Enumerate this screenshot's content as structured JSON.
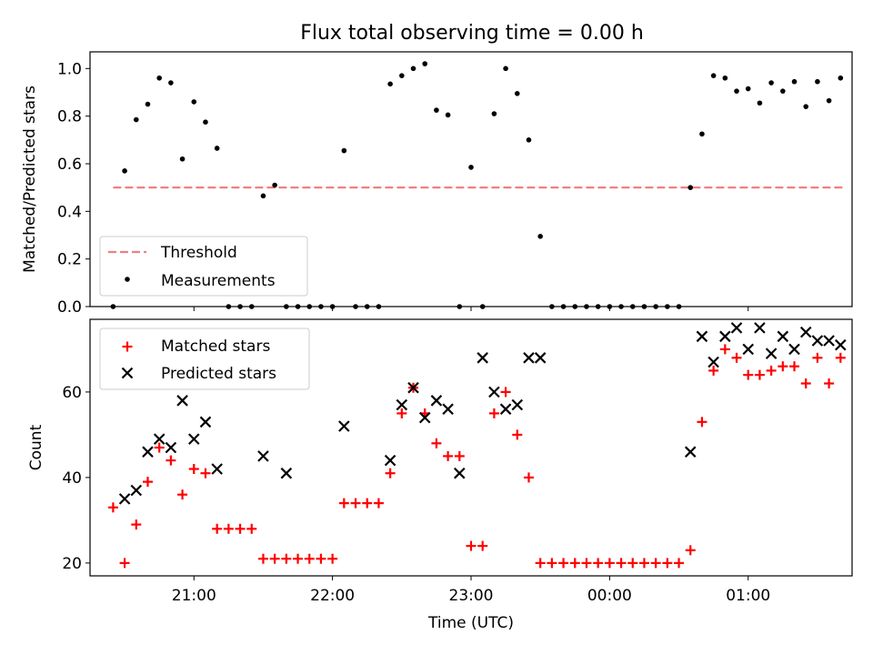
{
  "title": "Flux total observing time = 0.00 h",
  "colors": {
    "threshold": "#f08080",
    "measurements": "#000000",
    "matched": "#ff0000",
    "predicted": "#000000"
  },
  "chart_data": [
    {
      "type": "scatter",
      "ylabel": "Matched/Predicted stars",
      "xlim": [
        "20:15",
        "01:45"
      ],
      "ylim": [
        0,
        1.07
      ],
      "yticks": [
        0.0,
        0.2,
        0.4,
        0.6,
        0.8,
        1.0
      ],
      "ytick_labels": [
        "0.0",
        "0.2",
        "0.4",
        "0.6",
        "0.8",
        "1.0"
      ],
      "grid": false,
      "legend_position": "lower-left",
      "threshold": {
        "name": "Threshold",
        "y": 0.5,
        "x_range": [
          "20:25",
          "01:42"
        ]
      },
      "series": [
        {
          "name": "Measurements",
          "x": [
            "20:25",
            "20:30",
            "20:35",
            "20:40",
            "20:45",
            "20:50",
            "20:55",
            "21:00",
            "21:05",
            "21:10",
            "21:15",
            "21:20",
            "21:25",
            "21:30",
            "21:35",
            "21:40",
            "21:45",
            "21:50",
            "21:55",
            "22:00",
            "22:05",
            "22:10",
            "22:15",
            "22:20",
            "22:25",
            "22:30",
            "22:35",
            "22:40",
            "22:45",
            "22:50",
            "22:55",
            "23:00",
            "23:05",
            "23:10",
            "23:15",
            "23:20",
            "23:25",
            "23:30",
            "23:35",
            "23:40",
            "23:45",
            "23:50",
            "23:55",
            "00:00",
            "00:05",
            "00:10",
            "00:15",
            "00:20",
            "00:25",
            "00:30",
            "00:35",
            "00:40",
            "00:45",
            "00:50",
            "00:55",
            "01:00",
            "01:05",
            "01:10",
            "01:15",
            "01:20",
            "01:25",
            "01:30",
            "01:35",
            "01:40"
          ],
          "y": [
            0.0,
            0.57,
            0.785,
            0.85,
            0.96,
            0.94,
            0.62,
            0.86,
            0.775,
            0.665,
            0.0,
            0.0,
            0.0,
            0.465,
            0.51,
            0.0,
            0.0,
            0.0,
            0.0,
            0.0,
            0.655,
            0.0,
            0.0,
            0.0,
            0.935,
            0.97,
            1.0,
            1.02,
            0.825,
            0.805,
            0.0,
            0.585,
            0.0,
            0.81,
            1.0,
            0.895,
            0.7,
            0.295,
            0.0,
            0.0,
            0.0,
            0.0,
            0.0,
            0.0,
            0.0,
            0.0,
            0.0,
            0.0,
            0.0,
            0.0,
            0.5,
            0.725,
            0.97,
            0.96,
            0.905,
            0.915,
            0.855,
            0.94,
            0.905,
            0.945,
            0.84,
            0.945,
            0.865,
            0.96
          ]
        }
      ]
    },
    {
      "type": "scatter",
      "xlabel": "Time (UTC)",
      "ylabel": "Count",
      "xlim": [
        "20:15",
        "01:45"
      ],
      "ylim": [
        17,
        77
      ],
      "xticks": [
        "21:00",
        "22:00",
        "23:00",
        "00:00",
        "01:00"
      ],
      "yticks": [
        20,
        40,
        60
      ],
      "grid": false,
      "legend_position": "upper-left",
      "series": [
        {
          "name": "Matched stars",
          "marker": "+",
          "x": [
            "20:25",
            "20:30",
            "20:35",
            "20:40",
            "20:45",
            "20:50",
            "20:55",
            "21:00",
            "21:05",
            "21:10",
            "21:15",
            "21:20",
            "21:25",
            "21:30",
            "21:35",
            "21:40",
            "21:45",
            "21:50",
            "21:55",
            "22:00",
            "22:05",
            "22:10",
            "22:15",
            "22:20",
            "22:25",
            "22:30",
            "22:35",
            "22:40",
            "22:45",
            "22:50",
            "22:55",
            "23:00",
            "23:05",
            "23:10",
            "23:15",
            "23:20",
            "23:25",
            "23:30",
            "23:35",
            "23:40",
            "23:45",
            "23:50",
            "23:55",
            "00:00",
            "00:05",
            "00:10",
            "00:15",
            "00:20",
            "00:25",
            "00:30",
            "00:35",
            "00:40",
            "00:45",
            "00:50",
            "00:55",
            "01:00",
            "01:05",
            "01:10",
            "01:15",
            "01:20",
            "01:25",
            "01:30",
            "01:35",
            "01:40"
          ],
          "y": [
            33,
            20,
            29,
            39,
            47,
            44,
            36,
            42,
            41,
            28,
            28,
            28,
            28,
            21,
            21,
            21,
            21,
            21,
            21,
            21,
            34,
            34,
            34,
            34,
            41,
            55,
            61,
            55,
            48,
            45,
            45,
            24,
            24,
            55,
            60,
            50,
            40,
            20,
            20,
            20,
            20,
            20,
            20,
            20,
            20,
            20,
            20,
            20,
            20,
            20,
            23,
            53,
            65,
            70,
            68,
            64,
            64,
            65,
            66,
            66,
            62,
            68,
            62,
            68
          ]
        },
        {
          "name": "Predicted stars",
          "marker": "x",
          "x": [
            "20:30",
            "20:35",
            "20:40",
            "20:45",
            "20:50",
            "20:55",
            "21:00",
            "21:05",
            "21:10",
            "21:30",
            "21:40",
            "22:05",
            "22:25",
            "22:30",
            "22:35",
            "22:40",
            "22:45",
            "22:50",
            "22:55",
            "23:05",
            "23:10",
            "23:15",
            "23:20",
            "23:25",
            "23:30",
            "00:35",
            "00:40",
            "00:45",
            "00:50",
            "00:55",
            "01:00",
            "01:05",
            "01:10",
            "01:15",
            "01:20",
            "01:25",
            "01:30",
            "01:35",
            "01:40"
          ],
          "y": [
            35,
            37,
            46,
            49,
            47,
            58,
            49,
            53,
            42,
            45,
            41,
            52,
            44,
            57,
            61,
            54,
            58,
            56,
            41,
            68,
            60,
            56,
            57,
            68,
            68,
            46,
            73,
            67,
            73,
            75,
            70,
            75,
            69,
            73,
            70,
            74,
            72,
            72,
            71
          ]
        }
      ]
    }
  ]
}
